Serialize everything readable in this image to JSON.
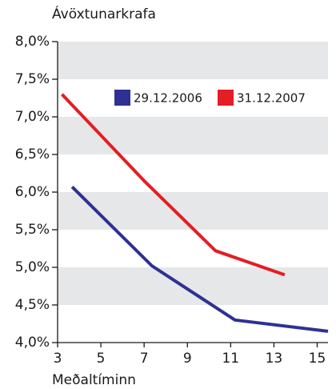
{
  "chart_data": {
    "type": "line",
    "y_label": "Ávöxtunarkrafa",
    "x_label": "Meðaltíminn",
    "xlim": [
      3,
      15.5
    ],
    "xticks": [
      3,
      5,
      7,
      9,
      11,
      13,
      15
    ],
    "ylim": [
      4,
      8
    ],
    "yticks": [
      {
        "value": 4,
        "label": "4,0%"
      },
      {
        "value": 4.5,
        "label": "4,5%"
      },
      {
        "value": 5,
        "label": "5,0%"
      },
      {
        "value": 5.5,
        "label": "5,5%"
      },
      {
        "value": 6,
        "label": "6,0%"
      },
      {
        "value": 6.5,
        "label": "6,5%"
      },
      {
        "value": 7,
        "label": "7,0%"
      },
      {
        "value": 7.5,
        "label": "7,5%"
      },
      {
        "value": 8,
        "label": "8,0%"
      }
    ],
    "grid_bands": true,
    "band_color": "#e6e7e8",
    "series": [
      {
        "name": "29.12.2006",
        "color": "#2e3192",
        "x": [
          3.67,
          7.36,
          11.2,
          15.5
        ],
        "values": [
          6.07,
          5.02,
          4.3,
          4.15
        ]
      },
      {
        "name": "31.12.2007",
        "color": "#e31e24",
        "x": [
          3.2,
          7.0,
          10.3,
          13.5
        ],
        "values": [
          7.3,
          6.15,
          5.22,
          4.9
        ]
      }
    ]
  }
}
